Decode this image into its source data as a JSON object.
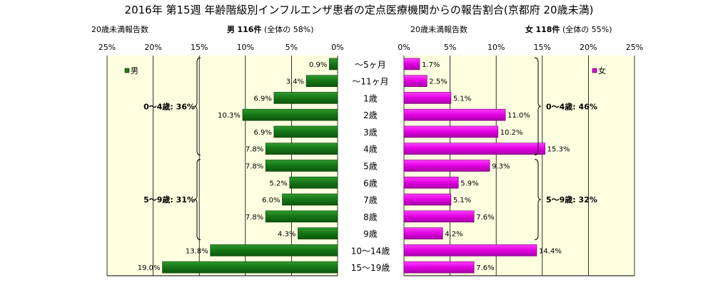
{
  "title": "2016年 第15週 年齢階級別インフルエンザ患者の定点医療機関からの報告割合(京都府 20歳未満)",
  "male_header": {
    "caption": "20歳未満報告数",
    "label": "男",
    "count": "116件",
    "share": "(全体の  58%)"
  },
  "female_header": {
    "caption": "20歳未満報告数",
    "label": "女",
    "count": "118件",
    "share": "(全体の  55%)"
  },
  "colors": {
    "male": "#1a7a1a",
    "female": "#e000e0",
    "panel": "#fdfde0",
    "grid": "#000000"
  },
  "chart_data": {
    "type": "bar",
    "orientation": "horizontal",
    "layout": "population-pyramid",
    "categories": [
      "〜5ヶ月",
      "〜11ヶ月",
      "1歳",
      "2歳",
      "3歳",
      "4歳",
      "5歳",
      "6歳",
      "7歳",
      "8歳",
      "9歳",
      "10〜14歳",
      "15〜19歳"
    ],
    "unit": "%",
    "xlim": [
      0,
      25
    ],
    "xticks": [
      "0%",
      "5%",
      "10%",
      "15%",
      "20%",
      "25%"
    ],
    "series": [
      {
        "name": "男",
        "side": "left",
        "values": [
          0.9,
          3.4,
          6.9,
          10.3,
          6.9,
          7.8,
          7.8,
          5.2,
          6.0,
          7.8,
          4.3,
          13.8,
          19.0
        ]
      },
      {
        "name": "女",
        "side": "right",
        "values": [
          1.7,
          2.5,
          5.1,
          11.0,
          10.2,
          15.3,
          9.3,
          5.9,
          5.1,
          7.6,
          4.2,
          14.4,
          7.6
        ]
      }
    ],
    "annotations": {
      "male": [
        {
          "text": "0〜4歳: 36%",
          "from": 0,
          "to": 5
        },
        {
          "text": "5〜9歳: 31%",
          "from": 6,
          "to": 10
        }
      ],
      "female": [
        {
          "text": "0〜4歳: 46%",
          "from": 0,
          "to": 5
        },
        {
          "text": "5〜9歳: 32%",
          "from": 6,
          "to": 10
        }
      ]
    },
    "grid": true,
    "legend": "top-outer-corners"
  }
}
